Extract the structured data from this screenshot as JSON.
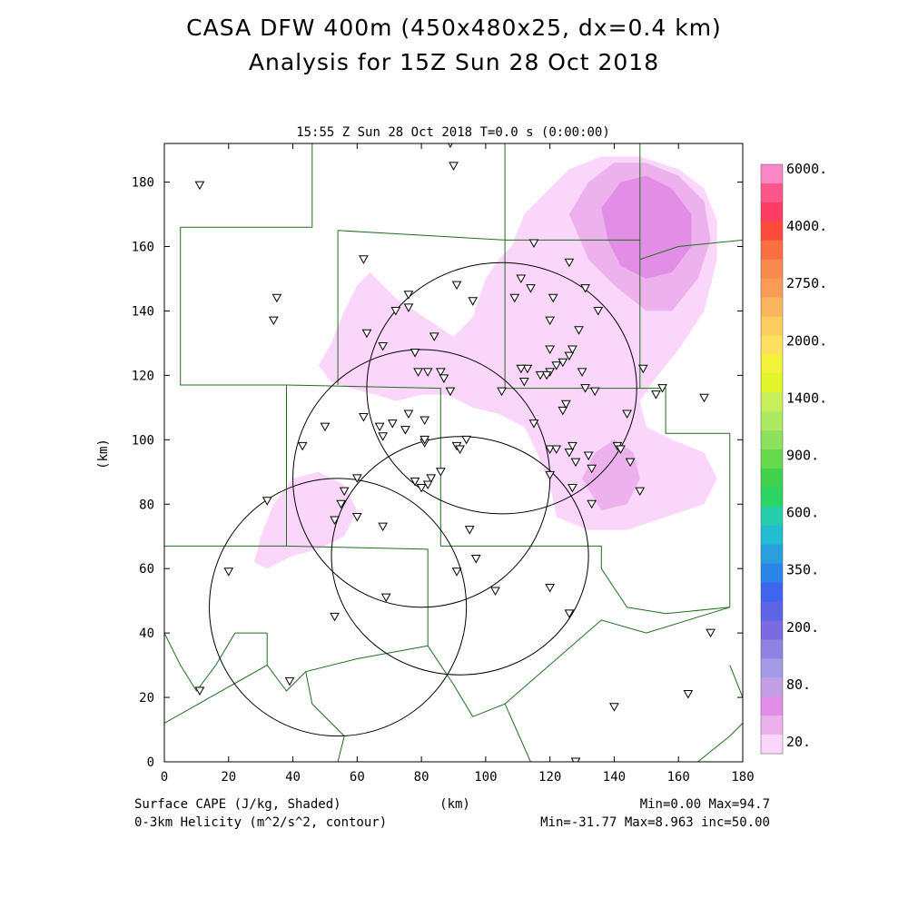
{
  "title_line1": "CASA DFW 400m (450x480x25, dx=0.4 km)",
  "title_line2": "Analysis for 15Z Sun 28 Oct 2018",
  "chart_data": {
    "type": "heatmap",
    "subtitle": "15:55 Z Sun 28 Oct 2018   T=0.0 s (0:00:00)",
    "xlabel": "(km)",
    "ylabel": "(km)",
    "xlim": [
      0,
      180
    ],
    "ylim": [
      0,
      192
    ],
    "x_ticks": [
      0,
      20,
      40,
      60,
      80,
      100,
      120,
      140,
      160,
      180
    ],
    "y_ticks": [
      0,
      20,
      40,
      60,
      80,
      100,
      120,
      140,
      160,
      180
    ],
    "shaded_label": "Surface CAPE (J/kg, Shaded)",
    "contour_label": "0-3km Helicity (m^2/s^2, contour)",
    "shaded_stats": "Min=0.00 Max=94.7",
    "contour_stats": "Min=-31.77 Max=8.963 inc=50.00",
    "colorbar": {
      "labels": [
        "6000.",
        "4000.",
        "2750.",
        "2000.",
        "1400.",
        "900.",
        "600.",
        "350.",
        "200.",
        "80.",
        "20."
      ],
      "colors": [
        "#f987c6",
        "#fb5589",
        "#fd3d63",
        "#fc4b3d",
        "#fa6f42",
        "#f98a4d",
        "#fa9c56",
        "#fab55e",
        "#fbcc60",
        "#fde05e",
        "#f2f23b",
        "#e2f62b",
        "#c7ef5c",
        "#aee962",
        "#8ee15e",
        "#66d94d",
        "#3fd14b",
        "#2cd463",
        "#24ceaa",
        "#23bcd2",
        "#2a9fde",
        "#2b85e8",
        "#3e65ed",
        "#5e64e6",
        "#7b6ae0",
        "#9082e4",
        "#a39be8",
        "#c29ee5",
        "#e28de6",
        "#edb2ed",
        "#fbd6fb"
      ]
    },
    "cape_regions": [
      {
        "level": 20,
        "points": [
          [
            48,
            123
          ],
          [
            52,
            130
          ],
          [
            56,
            140
          ],
          [
            60,
            148
          ],
          [
            64,
            152
          ],
          [
            68,
            148
          ],
          [
            72,
            144
          ],
          [
            78,
            140
          ],
          [
            84,
            136
          ],
          [
            90,
            132
          ],
          [
            96,
            138
          ],
          [
            100,
            150
          ],
          [
            104,
            156
          ],
          [
            108,
            160
          ],
          [
            112,
            170
          ],
          [
            118,
            176
          ],
          [
            126,
            184
          ],
          [
            136,
            188
          ],
          [
            148,
            188
          ],
          [
            160,
            184
          ],
          [
            168,
            178
          ],
          [
            172,
            168
          ],
          [
            172,
            156
          ],
          [
            168,
            140
          ],
          [
            160,
            128
          ],
          [
            152,
            118
          ],
          [
            148,
            112
          ],
          [
            150,
            104
          ],
          [
            158,
            100
          ],
          [
            168,
            96
          ],
          [
            172,
            88
          ],
          [
            168,
            80
          ],
          [
            156,
            76
          ],
          [
            144,
            72
          ],
          [
            132,
            72
          ],
          [
            122,
            76
          ],
          [
            120,
            86
          ],
          [
            116,
            96
          ],
          [
            112,
            104
          ],
          [
            104,
            108
          ],
          [
            96,
            110
          ],
          [
            88,
            114
          ],
          [
            80,
            114
          ],
          [
            72,
            112
          ],
          [
            66,
            114
          ],
          [
            58,
            116
          ],
          [
            52,
            118
          ]
        ]
      },
      {
        "level": 20,
        "points": [
          [
            30,
            70
          ],
          [
            34,
            80
          ],
          [
            40,
            88
          ],
          [
            48,
            90
          ],
          [
            56,
            86
          ],
          [
            60,
            78
          ],
          [
            56,
            70
          ],
          [
            48,
            66
          ],
          [
            40,
            64
          ],
          [
            32,
            60
          ],
          [
            28,
            62
          ]
        ]
      },
      {
        "level": 40,
        "points": [
          [
            126,
            170
          ],
          [
            132,
            180
          ],
          [
            140,
            186
          ],
          [
            150,
            186
          ],
          [
            160,
            182
          ],
          [
            168,
            174
          ],
          [
            170,
            162
          ],
          [
            166,
            150
          ],
          [
            158,
            140
          ],
          [
            150,
            140
          ],
          [
            140,
            148
          ],
          [
            132,
            156
          ]
        ]
      },
      {
        "level": 40,
        "points": [
          [
            130,
            88
          ],
          [
            134,
            96
          ],
          [
            140,
            100
          ],
          [
            146,
            96
          ],
          [
            148,
            88
          ],
          [
            144,
            80
          ],
          [
            136,
            78
          ]
        ]
      },
      {
        "level": 60,
        "points": [
          [
            136,
            172
          ],
          [
            142,
            180
          ],
          [
            150,
            182
          ],
          [
            158,
            178
          ],
          [
            164,
            170
          ],
          [
            164,
            160
          ],
          [
            158,
            152
          ],
          [
            150,
            150
          ],
          [
            142,
            154
          ],
          [
            138,
            162
          ]
        ]
      }
    ],
    "helicity_contours": [
      {
        "center": [
          105,
          116
        ],
        "radius_x": 42,
        "radius_y": 39
      },
      {
        "center": [
          80,
          88
        ],
        "radius_x": 40,
        "radius_y": 40
      },
      {
        "center": [
          92,
          64
        ],
        "radius_x": 40,
        "radius_y": 37
      },
      {
        "center": [
          54,
          48
        ],
        "radius_x": 40,
        "radius_y": 40
      }
    ],
    "county_lines": [
      [
        [
          5,
          166
        ],
        [
          46,
          166
        ],
        [
          46,
          192
        ]
      ],
      [
        [
          5,
          166
        ],
        [
          5,
          117
        ],
        [
          38,
          117
        ]
      ],
      [
        [
          38,
          117
        ],
        [
          38,
          67
        ]
      ],
      [
        [
          54,
          165
        ],
        [
          54,
          117
        ]
      ],
      [
        [
          54,
          165
        ],
        [
          106,
          162
        ],
        [
          106,
          192
        ]
      ],
      [
        [
          106,
          162
        ],
        [
          148,
          162
        ],
        [
          148,
          192
        ]
      ],
      [
        [
          148,
          162
        ],
        [
          148,
          116
        ]
      ],
      [
        [
          106,
          162
        ],
        [
          106,
          116
        ],
        [
          148,
          116
        ]
      ],
      [
        [
          148,
          156
        ],
        [
          160,
          160
        ],
        [
          180,
          162
        ]
      ],
      [
        [
          148,
          116
        ],
        [
          156,
          116
        ],
        [
          156,
          102
        ],
        [
          176,
          102
        ],
        [
          176,
          48
        ]
      ],
      [
        [
          38,
          117
        ],
        [
          86,
          116
        ],
        [
          86,
          67
        ]
      ],
      [
        [
          0,
          67
        ],
        [
          38,
          67
        ]
      ],
      [
        [
          86,
          67
        ],
        [
          136,
          67
        ],
        [
          136,
          60
        ],
        [
          140,
          54
        ],
        [
          144,
          48
        ],
        [
          156,
          46
        ],
        [
          176,
          48
        ]
      ],
      [
        [
          38,
          67
        ],
        [
          82,
          66
        ],
        [
          82,
          36
        ]
      ],
      [
        [
          0,
          40
        ],
        [
          5,
          30
        ],
        [
          10,
          22
        ],
        [
          16,
          30
        ],
        [
          22,
          40
        ],
        [
          32,
          40
        ]
      ],
      [
        [
          32,
          40
        ],
        [
          32,
          30
        ],
        [
          0,
          12
        ]
      ],
      [
        [
          32,
          30
        ],
        [
          38,
          22
        ],
        [
          44,
          28
        ],
        [
          60,
          32
        ],
        [
          82,
          36
        ]
      ],
      [
        [
          82,
          36
        ],
        [
          90,
          24
        ],
        [
          96,
          14
        ],
        [
          106,
          18
        ],
        [
          136,
          44
        ],
        [
          150,
          40
        ],
        [
          176,
          48
        ]
      ],
      [
        [
          44,
          28
        ],
        [
          46,
          18
        ],
        [
          52,
          12
        ],
        [
          56,
          8
        ],
        [
          54,
          0
        ]
      ],
      [
        [
          106,
          18
        ],
        [
          114,
          0
        ]
      ],
      [
        [
          166,
          0
        ],
        [
          176,
          8
        ],
        [
          180,
          12
        ]
      ],
      [
        [
          176,
          30
        ],
        [
          180,
          20
        ]
      ]
    ],
    "stations": [
      [
        11,
        179
      ],
      [
        89,
        192
      ],
      [
        90,
        185
      ],
      [
        35,
        144
      ],
      [
        34,
        137
      ],
      [
        62,
        156
      ],
      [
        63,
        133
      ],
      [
        68,
        129
      ],
      [
        72,
        140
      ],
      [
        76,
        145
      ],
      [
        76,
        141
      ],
      [
        78,
        127
      ],
      [
        82,
        121
      ],
      [
        79,
        121
      ],
      [
        86,
        121
      ],
      [
        87,
        119
      ],
      [
        84,
        132
      ],
      [
        91,
        148
      ],
      [
        96,
        143
      ],
      [
        115,
        161
      ],
      [
        111,
        150
      ],
      [
        109,
        144
      ],
      [
        114,
        147
      ],
      [
        120,
        137
      ],
      [
        121,
        144
      ],
      [
        126,
        155
      ],
      [
        131,
        147
      ],
      [
        129,
        134
      ],
      [
        120,
        128
      ],
      [
        122,
        123
      ],
      [
        124,
        124
      ],
      [
        126,
        126
      ],
      [
        120,
        121
      ],
      [
        113,
        122
      ],
      [
        111,
        122
      ],
      [
        112,
        118
      ],
      [
        135,
        140
      ],
      [
        117,
        120
      ],
      [
        119,
        120
      ],
      [
        130,
        121
      ],
      [
        131,
        116
      ],
      [
        134,
        115
      ],
      [
        127,
        128
      ],
      [
        124,
        109
      ],
      [
        125,
        111
      ],
      [
        144,
        108
      ],
      [
        149,
        122
      ],
      [
        153,
        114
      ],
      [
        155,
        116
      ],
      [
        168,
        113
      ],
      [
        105,
        115
      ],
      [
        89,
        115
      ],
      [
        76,
        108
      ],
      [
        75,
        103
      ],
      [
        71,
        105
      ],
      [
        68,
        101
      ],
      [
        67,
        104
      ],
      [
        62,
        107
      ],
      [
        50,
        104
      ],
      [
        43,
        98
      ],
      [
        81,
        106
      ],
      [
        81,
        99
      ],
      [
        81,
        100
      ],
      [
        91,
        98
      ],
      [
        92,
        97
      ],
      [
        94,
        100
      ],
      [
        115,
        105
      ],
      [
        120,
        97
      ],
      [
        122,
        97
      ],
      [
        126,
        96
      ],
      [
        127,
        98
      ],
      [
        128,
        93
      ],
      [
        132,
        95
      ],
      [
        133,
        91
      ],
      [
        141,
        98
      ],
      [
        142,
        97
      ],
      [
        145,
        93
      ],
      [
        148,
        84
      ],
      [
        127,
        85
      ],
      [
        133,
        80
      ],
      [
        120,
        89
      ],
      [
        86,
        90
      ],
      [
        83,
        88
      ],
      [
        82,
        86
      ],
      [
        80,
        85
      ],
      [
        78,
        87
      ],
      [
        60,
        88
      ],
      [
        56,
        84
      ],
      [
        55,
        80
      ],
      [
        53,
        75
      ],
      [
        60,
        76
      ],
      [
        68,
        73
      ],
      [
        32,
        81
      ],
      [
        95,
        72
      ],
      [
        97,
        63
      ],
      [
        91,
        59
      ],
      [
        69,
        51
      ],
      [
        53,
        45
      ],
      [
        20,
        59
      ],
      [
        103,
        53
      ],
      [
        120,
        54
      ],
      [
        126,
        46
      ],
      [
        170,
        40
      ],
      [
        140,
        17
      ],
      [
        163,
        21
      ],
      [
        11,
        22
      ],
      [
        39,
        25
      ],
      [
        128,
        0
      ]
    ]
  }
}
